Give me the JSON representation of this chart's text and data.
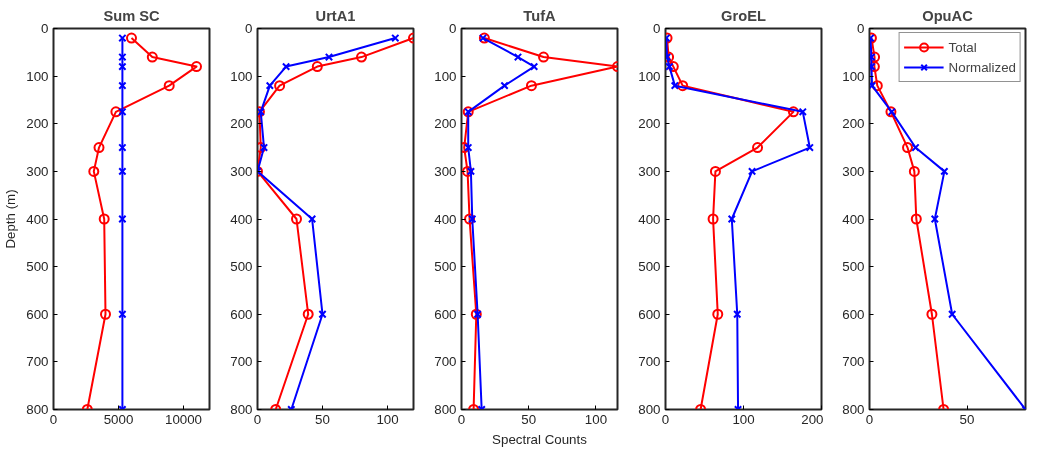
{
  "chart_data": [
    {
      "type": "line",
      "title": "Sum SC",
      "ylabel": "Depth (m)",
      "xlim": [
        0,
        12000
      ],
      "xticks": [
        0,
        5000,
        10000
      ],
      "ylim": [
        800,
        0
      ],
      "yticks": [
        0,
        100,
        200,
        300,
        400,
        500,
        600,
        700,
        800
      ],
      "grid": false,
      "series": [
        {
          "color": "#ff0000",
          "marker": "circle",
          "x": [
            6000,
            7600,
            11000,
            8900,
            4800,
            3500,
            3100,
            3900,
            4000,
            2600
          ],
          "values": [
            20,
            60,
            80,
            120,
            175,
            250,
            300,
            400,
            600,
            800
          ]
        },
        {
          "color": "#0000ff",
          "marker": "cross",
          "x": [
            5300,
            5300,
            5300,
            5300,
            5300,
            5300,
            5300,
            5300,
            5300,
            5300
          ],
          "values": [
            20,
            60,
            80,
            120,
            175,
            250,
            300,
            400,
            600,
            800
          ]
        }
      ]
    },
    {
      "type": "line",
      "title": "UrtA1",
      "xlim": [
        0,
        120
      ],
      "xticks": [
        0,
        50,
        100
      ],
      "ylim": [
        800,
        0
      ],
      "yticks": [
        0,
        100,
        200,
        300,
        400,
        500,
        600,
        700,
        800
      ],
      "grid": false,
      "series": [
        {
          "color": "#ff0000",
          "marker": "circle",
          "x": [
            120,
            80,
            46,
            17,
            1.5,
            2.5,
            0,
            30,
            39,
            14
          ],
          "values": [
            20,
            60,
            80,
            120,
            175,
            250,
            300,
            400,
            600,
            800
          ]
        },
        {
          "color": "#0000ff",
          "marker": "cross",
          "x": [
            106,
            55,
            22,
            9.5,
            2.5,
            5,
            0,
            42,
            50,
            26
          ],
          "values": [
            20,
            60,
            80,
            120,
            175,
            250,
            300,
            400,
            600,
            800
          ]
        }
      ]
    },
    {
      "type": "line",
      "title": "TufA",
      "xlabel": "Spectral Counts",
      "xlim": [
        0,
        116
      ],
      "xticks": [
        0,
        50,
        100
      ],
      "ylim": [
        800,
        0
      ],
      "yticks": [
        0,
        100,
        200,
        300,
        400,
        500,
        600,
        700,
        800
      ],
      "grid": false,
      "series": [
        {
          "color": "#ff0000",
          "marker": "circle",
          "x": [
            17,
            61,
            116,
            52,
            5,
            2,
            4.5,
            6,
            11,
            9
          ],
          "values": [
            20,
            60,
            80,
            120,
            175,
            250,
            300,
            400,
            600,
            800
          ]
        },
        {
          "color": "#0000ff",
          "marker": "cross",
          "x": [
            16,
            42,
            54,
            32,
            5,
            5,
            7,
            8,
            12,
            15
          ],
          "values": [
            20,
            60,
            80,
            120,
            175,
            250,
            300,
            400,
            600,
            800
          ]
        }
      ]
    },
    {
      "type": "line",
      "title": "GroEL",
      "xlim": [
        0,
        200
      ],
      "xticks": [
        0,
        100,
        200
      ],
      "ylim": [
        800,
        0
      ],
      "yticks": [
        0,
        100,
        200,
        300,
        400,
        500,
        600,
        700,
        800
      ],
      "grid": false,
      "series": [
        {
          "color": "#ff0000",
          "marker": "circle",
          "x": [
            2,
            4,
            10,
            22,
            164,
            118,
            64,
            61,
            67,
            45
          ],
          "values": [
            20,
            60,
            80,
            120,
            175,
            250,
            300,
            400,
            600,
            800
          ]
        },
        {
          "color": "#0000ff",
          "marker": "cross",
          "x": [
            1,
            2,
            5,
            12,
            176,
            185,
            111,
            85,
            92,
            93
          ],
          "values": [
            20,
            60,
            80,
            120,
            175,
            250,
            300,
            400,
            600,
            800
          ]
        }
      ]
    },
    {
      "type": "line",
      "title": "OpuAC",
      "xlim": [
        0,
        80
      ],
      "xticks": [
        0,
        50
      ],
      "ylim": [
        800,
        0
      ],
      "yticks": [
        0,
        100,
        200,
        300,
        400,
        500,
        600,
        700,
        800
      ],
      "grid": false,
      "legend": "top right",
      "series": [
        {
          "name": "Total",
          "color": "#ff0000",
          "marker": "circle",
          "x": [
            1,
            2.6,
            2.5,
            4,
            11,
            19.5,
            23,
            24,
            32,
            38
          ],
          "values": [
            20,
            60,
            80,
            120,
            175,
            250,
            300,
            400,
            600,
            800
          ]
        },
        {
          "name": "Normalized",
          "color": "#0000ff",
          "marker": "cross",
          "x": [
            0.5,
            1,
            1,
            1.3,
            11.4,
            23.6,
            38.4,
            33.5,
            42.4,
            80
          ],
          "values": [
            20,
            60,
            80,
            120,
            175,
            250,
            300,
            400,
            600,
            800
          ]
        }
      ]
    }
  ]
}
